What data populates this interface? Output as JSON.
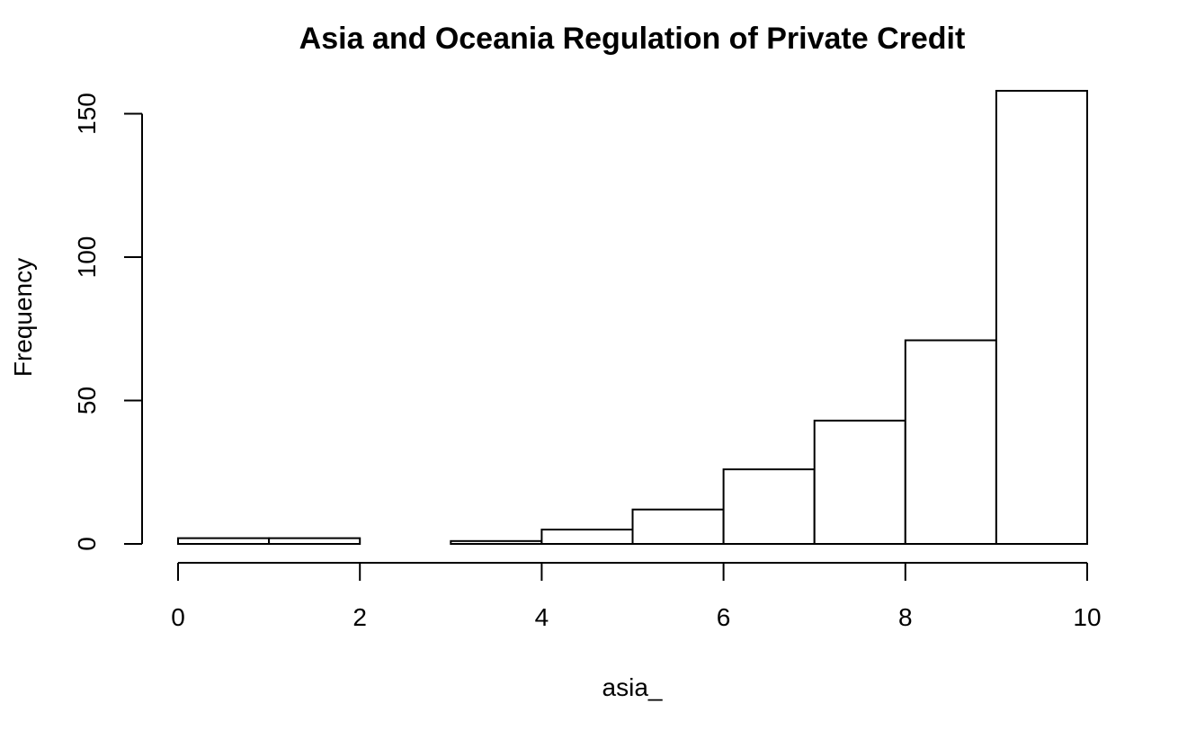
{
  "chart_data": {
    "type": "histogram",
    "title": "Asia and Oceania Regulation of Private Credit",
    "xlabel": "asia_",
    "ylabel": "Frequency",
    "bin_edges": [
      0,
      1,
      2,
      3,
      4,
      5,
      6,
      7,
      8,
      9,
      10
    ],
    "values": [
      2,
      2,
      0,
      1,
      5,
      12,
      26,
      43,
      71,
      158
    ],
    "xlim": [
      0,
      10
    ],
    "ylim": [
      0,
      158
    ],
    "x_ticks": [
      0,
      2,
      4,
      6,
      8,
      10
    ],
    "y_ticks": [
      0,
      50,
      100,
      150
    ],
    "grid": false,
    "colors": {
      "bar_fill": "#ffffff",
      "bar_stroke": "#000000"
    }
  }
}
